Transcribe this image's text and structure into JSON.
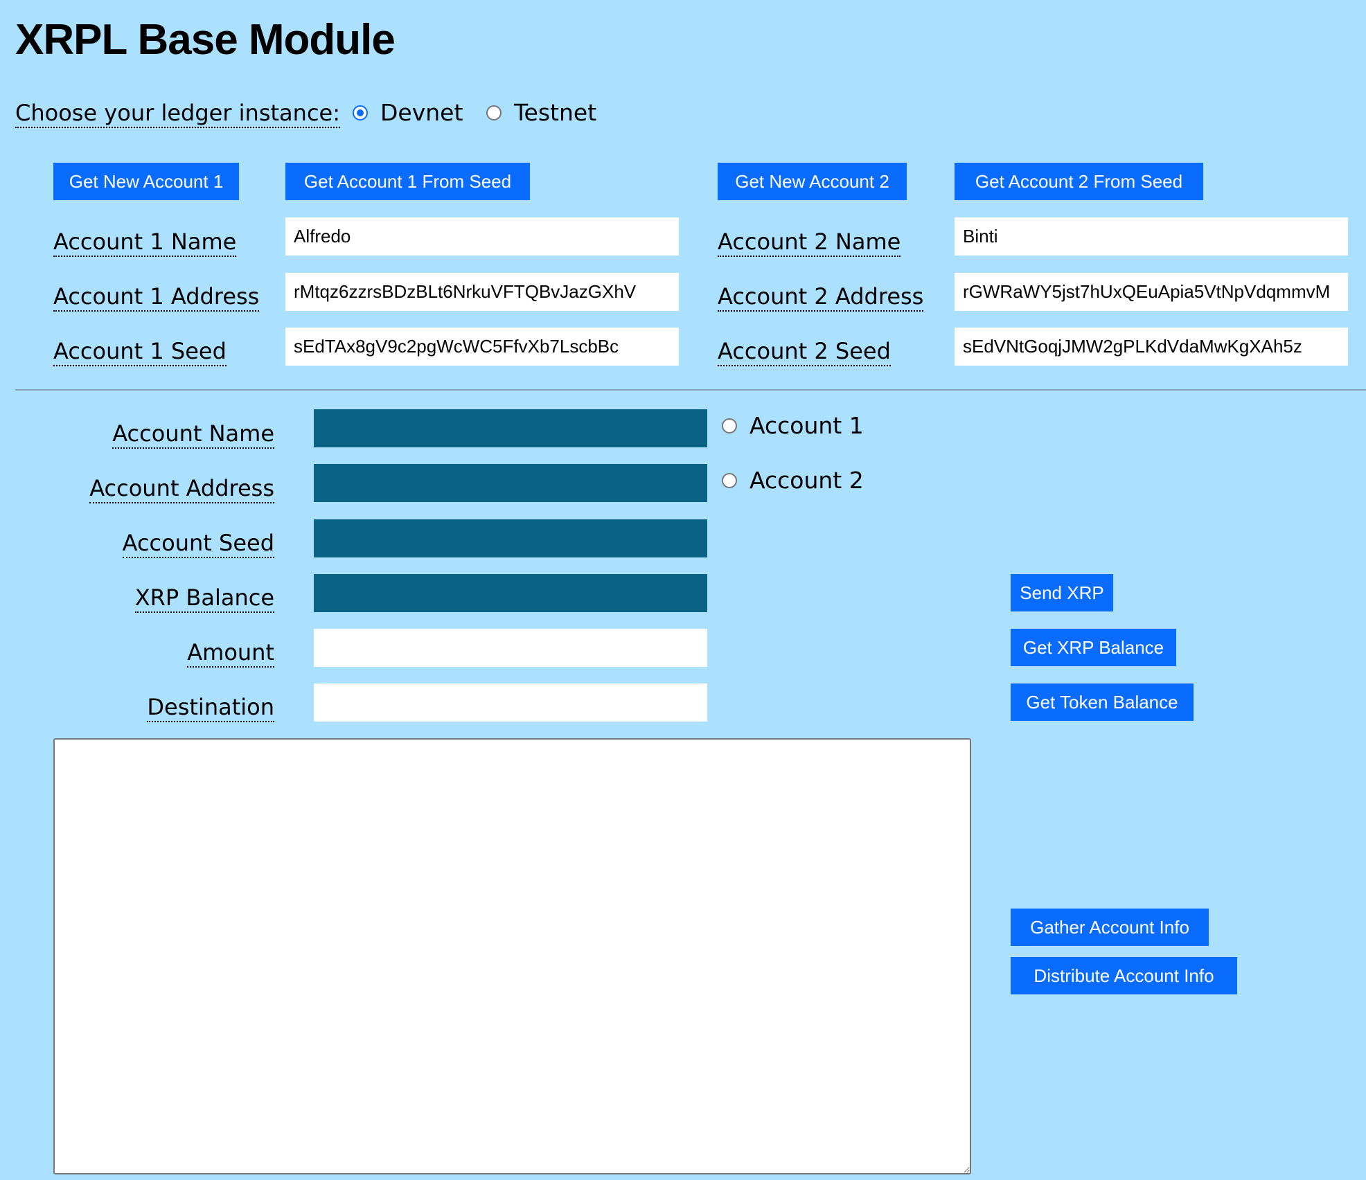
{
  "title": "XRPL Base Module",
  "ledger": {
    "label": "Choose your ledger instance:",
    "options": [
      {
        "label": "Devnet",
        "selected": true
      },
      {
        "label": "Testnet",
        "selected": false
      }
    ]
  },
  "account1": {
    "new_button": "Get New Account 1",
    "seed_button": "Get Account 1 From Seed",
    "name_label": "Account 1 Name",
    "address_label": "Account 1 Address",
    "seed_label": "Account 1 Seed",
    "name": "Alfredo",
    "address": "rMtqz6zzrsBDzBLt6NrkuVFTQBvJazGXhV",
    "seed": "sEdTAx8gV9c2pgWcWC5FfvXb7LscbBc"
  },
  "account2": {
    "new_button": "Get New Account 2",
    "seed_button": "Get Account 2 From Seed",
    "name_label": "Account 2 Name",
    "address_label": "Account 2 Address",
    "seed_label": "Account 2 Seed",
    "name": "Binti",
    "address": "rGWRaWY5jst7hUxQEuApia5VtNpVdqmmvM",
    "seed": "sEdVNtGoqjJMW2gPLKdVdaMwKgXAh5z"
  },
  "form": {
    "account_name_label": "Account Name",
    "account_address_label": "Account Address",
    "account_seed_label": "Account Seed",
    "xrp_balance_label": "XRP Balance",
    "amount_label": "Amount",
    "destination_label": "Destination",
    "account_name": "",
    "account_address": "",
    "account_seed": "",
    "xrp_balance": "",
    "amount": "",
    "destination": "",
    "account_select": [
      {
        "label": "Account 1",
        "selected": false
      },
      {
        "label": "Account 2",
        "selected": false
      }
    ],
    "results": ""
  },
  "actions": {
    "send_xrp": "Send XRP",
    "get_xrp_balance": "Get XRP Balance",
    "get_token_balance": "Get Token Balance",
    "gather_account_info": "Gather Account Info",
    "distribute_account_info": "Distribute Account Info"
  },
  "colors": {
    "background": "#abe0ff",
    "button": "#0a6cff",
    "readonly_input": "#0a6285"
  }
}
